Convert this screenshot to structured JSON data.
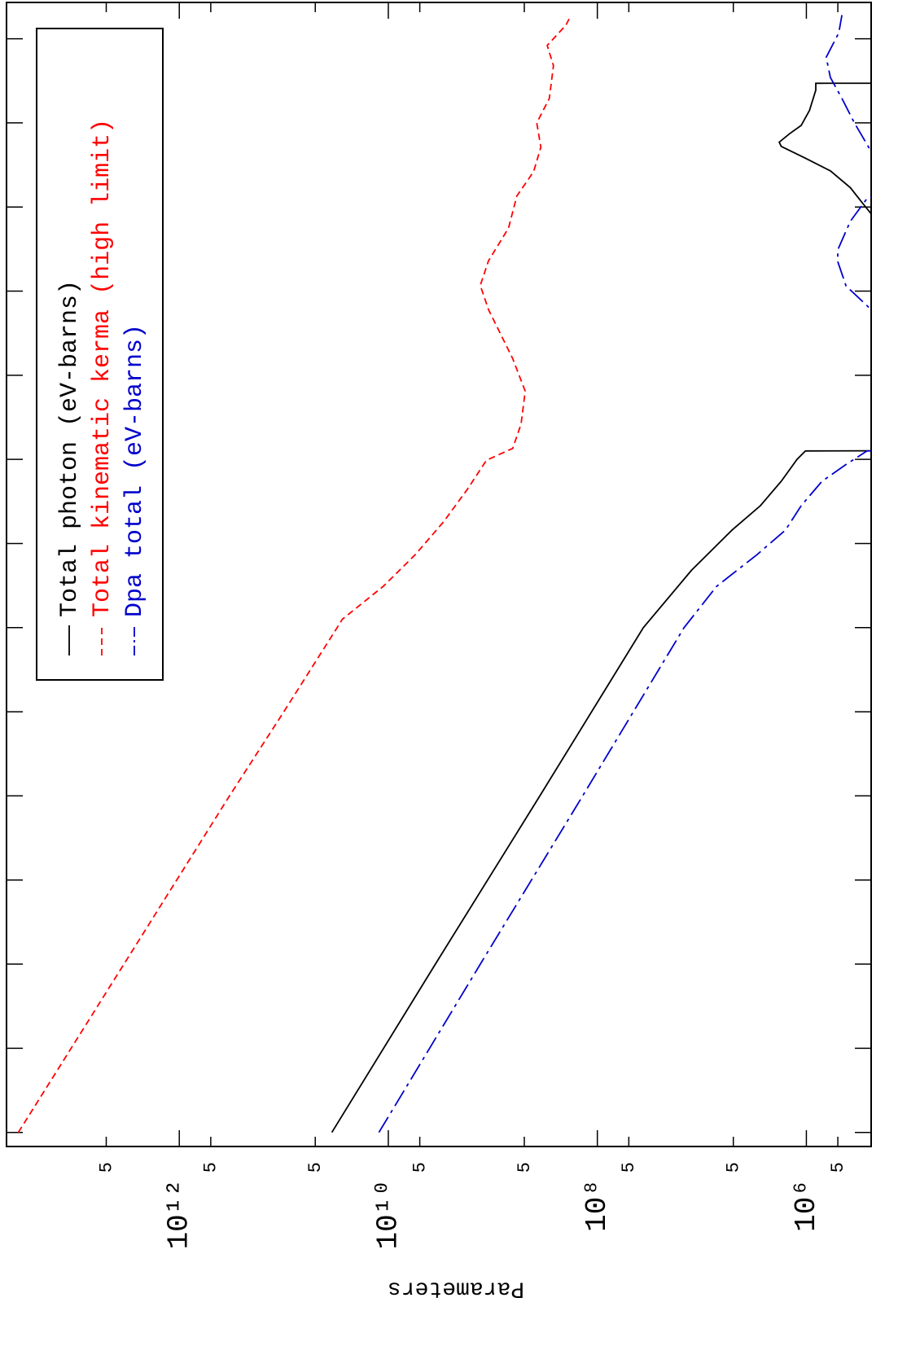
{
  "chart_data": {
    "type": "line",
    "ylabel": "Parameters",
    "xscale": "log",
    "yscale": "log",
    "xlim": [
      6.8e-06,
      270000000.0
    ],
    "ylim": [
      240000.0,
      45000000000000.0
    ],
    "xticks": [
      1e-05,
      0.0001,
      0.001,
      0.01,
      0.1,
      1,
      10,
      100,
      1000,
      10000,
      100000,
      1000000,
      10000000,
      100000000
    ],
    "yticks": [
      {
        "value": 5000000000000.0,
        "label": "5"
      },
      {
        "value": 1000000000000.0,
        "label": "10¹²"
      },
      {
        "value": 500000000000.0,
        "label": "5"
      },
      {
        "value": 50000000000.0,
        "label": "5"
      },
      {
        "value": 10000000000.0,
        "label": "10¹⁰"
      },
      {
        "value": 5000000000.0,
        "label": "5"
      },
      {
        "value": 500000000.0,
        "label": "5"
      },
      {
        "value": 100000000.0,
        "label": "10⁸"
      },
      {
        "value": 50000000.0,
        "label": "5"
      },
      {
        "value": 5000000.0,
        "label": "5"
      },
      {
        "value": 1000000.0,
        "label": "10⁶"
      },
      {
        "value": 500000.0,
        "label": "5"
      }
    ],
    "legend": "upper right",
    "series": [
      {
        "name": "Total photon (eV-barns)",
        "color": "#000000",
        "style": "solid",
        "x": [
          1e-05,
          0.001,
          0.1,
          10,
          47.9,
          145,
          282,
          550,
          1000,
          1260,
          1265,
          null,
          631000,
          832000,
          1100000,
          1700000,
          2690000,
          3800000,
          5250000,
          5890000,
          7410000,
          9330000,
          11500000,
          14100000,
          24500000,
          29500000,
          29600000
        ],
        "values": [
          34700000000.0,
          3550000000.0,
          355000000.0,
          36300000.0,
          12600000.0,
          5130000.0,
          2750000.0,
          1740000.0,
          1230000.0,
          1020000.0,
          160000.0,
          null,
          160000.0,
          240000.0,
          288000.0,
          380000.0,
          589000.0,
          1020000.0,
          1740000.0,
          1820000.0,
          1450000.0,
          1120000.0,
          1020000.0,
          933000.0,
          813000.0,
          813000.0,
          160000.0
        ]
      },
      {
        "name": "Total kinematic kerma (high limit)",
        "color": "#ff0000",
        "style": "dashed",
        "x": [
          1e-05,
          0.001,
          0.1,
          1,
          10,
          12.6,
          30.9,
          74.1,
          182,
          447,
          977,
          1350,
          2630,
          6460,
          15800,
          60300,
          117000,
          229000,
          562000,
          1350000,
          2630000,
          5130000,
          10000000,
          19500000,
          47900000,
          83200000,
          145000000,
          182000000
        ],
        "values": [
          34700000000000.0,
          3390000000000.0,
          331000000000.0,
          100000000000.0,
          30900000000.0,
          27500000000.0,
          11200000000.0,
          5500000000.0,
          2950000000.0,
          1740000000.0,
          1150000000.0,
          646000000.0,
          537000000.0,
          490000000.0,
          646000000.0,
          1100000000.0,
          1320000000.0,
          1100000000.0,
          708000000.0,
          589000000.0,
          407000000.0,
          347000000.0,
          380000000.0,
          288000000.0,
          263000000.0,
          302000000.0,
          200000000.0,
          182000000.0
        ]
      },
      {
        "name": "Dpa total (eV-barns)",
        "color": "#0000cc",
        "style": "dashdot",
        "x": [
          1e-05,
          0.001,
          0.1,
          10,
          30.9,
          74.1,
          145,
          282,
          550,
          871,
          1260,
          1265,
          null,
          50100,
          60300,
          115000,
          224000,
          309000,
          676000,
          1260000,
          1580000,
          null,
          3980000,
          4570000,
          10000000,
          19500000,
          34700000,
          60300000,
          117000000,
          191000000
        ],
        "values": [
          12300000000.0,
          1320000000.0,
          138000000.0,
          14800000.0,
          7240000.0,
          2950000.0,
          1580000.0,
          1120000.0,
          708000.0,
          417000.0,
          263000.0,
          160000.0,
          null,
          160000.0,
          240000.0,
          417000.0,
          501000.0,
          501000.0,
          380000.0,
          263000.0,
          160000.0,
          null,
          160000.0,
          240000.0,
          347000.0,
          457000.0,
          589000.0,
          646000.0,
          490000.0,
          457000.0
        ]
      }
    ]
  }
}
